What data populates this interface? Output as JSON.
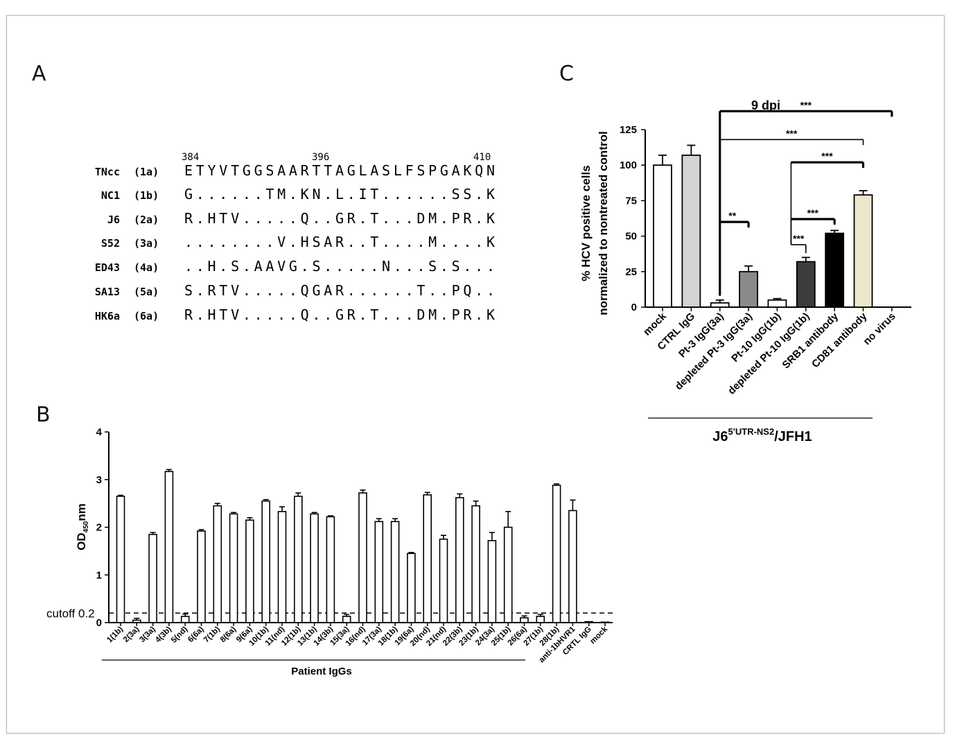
{
  "panel_a": {
    "letter": "A",
    "positions": [
      "384",
      "396",
      "410"
    ],
    "rows": [
      {
        "strain": "TNcc",
        "genotype": "(1a)",
        "seq": "ETYVTGGSAARTTAGLASLFSPGAKQN"
      },
      {
        "strain": "NC1",
        "genotype": "(1b)",
        "seq": "G......TM.KN.L.IT......SS.K"
      },
      {
        "strain": "J6",
        "genotype": "(2a)",
        "seq": "R.HTV.....Q..GR.T...DM.PR.K"
      },
      {
        "strain": "S52",
        "genotype": "(3a)",
        "seq": "........V.HSAR..T....M....K"
      },
      {
        "strain": "ED43",
        "genotype": "(4a)",
        "seq": "..H.S.AAVG.S.....N...S.S..."
      },
      {
        "strain": "SA13",
        "genotype": "(5a)",
        "seq": "S.RTV.....QGAR......T..PQ.."
      },
      {
        "strain": "HK6a",
        "genotype": "(6a)",
        "seq": "R.HTV.....Q..GR.T...DM.PR.K"
      }
    ]
  },
  "chart_data": [
    {
      "panel": "B",
      "type": "bar",
      "ylabel": "OD450nm",
      "ylabel_main": "OD",
      "ylabel_sub": "450",
      "ylabel_tail": "nm",
      "ylim": [
        0,
        4
      ],
      "yticks": [
        "0",
        "1",
        "2",
        "3",
        "4"
      ],
      "cutoff_label": "cutoff 0.2",
      "cutoff_value": 0.2,
      "group_label": "Patient IgGs",
      "categories": [
        "1(1b)",
        "2(3a)",
        "3(3a)",
        "4(3b)",
        "5(nd)",
        "6(6a)",
        "7(1b)",
        "8(6a)",
        "9(6a)",
        "10(1b)",
        "11(nd)",
        "12(1b)",
        "13(1b)",
        "14(3b)",
        "15(3a)",
        "16(nd)",
        "17(3a)",
        "18(1b)",
        "19(6a)",
        "20(nd)",
        "21(nd)",
        "22(3b)",
        "23(1b)",
        "24(3a)",
        "25(1b)",
        "26(6a)",
        "27(1b)",
        "28(1b)",
        "anti-1bHVR1",
        "CRTL IgG",
        "mock"
      ],
      "values": [
        2.65,
        0.05,
        1.85,
        3.17,
        0.13,
        1.92,
        2.45,
        2.28,
        2.15,
        2.55,
        2.33,
        2.65,
        2.28,
        2.22,
        0.13,
        2.72,
        2.12,
        2.12,
        1.45,
        2.68,
        1.75,
        2.62,
        2.45,
        1.72,
        2.0,
        0.1,
        0.13,
        2.88,
        2.35,
        0.02,
        0.01
      ],
      "errors": [
        0.02,
        0.04,
        0.04,
        0.04,
        0.05,
        0.03,
        0.05,
        0.03,
        0.05,
        0.03,
        0.1,
        0.07,
        0.03,
        0.02,
        0.04,
        0.06,
        0.06,
        0.06,
        0.02,
        0.05,
        0.08,
        0.08,
        0.1,
        0.17,
        0.33,
        0.04,
        0.04,
        0.03,
        0.22,
        0,
        0
      ]
    },
    {
      "panel": "C",
      "type": "bar",
      "title": "9 dpi",
      "ylabel_line1": "% HCV positive cells",
      "ylabel_line2": "normalized to nontreated control",
      "ylim": [
        0,
        125
      ],
      "yticks": [
        "0",
        "25",
        "50",
        "75",
        "100",
        "125"
      ],
      "categories": [
        "mock",
        "CTRL IgG",
        "Pt-3 IgG(3a)",
        "depleted Pt-3 IgG(3a)",
        "Pt-10 IgG(1b)",
        "depleted Pt-10 IgG(1b)",
        "SRB1 antibody",
        "CD81 antibody",
        "no virus"
      ],
      "values": [
        100,
        107,
        3,
        25,
        5,
        32,
        52,
        79,
        0
      ],
      "errors": [
        7,
        7,
        2,
        4,
        1,
        3,
        2,
        3,
        0
      ],
      "colors": [
        "#ffffff",
        "#d3d3d3",
        "#ffffff",
        "#8a8a8a",
        "#ffffff",
        "#3c3c3c",
        "#000000",
        "#ece6cc",
        "#ffffff"
      ],
      "significance": [
        "**",
        "***",
        "***",
        "***",
        "***",
        "***"
      ],
      "group_label_main": "J6",
      "group_label_sup": "5'UTR-NS2",
      "group_label_tail": "/JFH1"
    }
  ]
}
